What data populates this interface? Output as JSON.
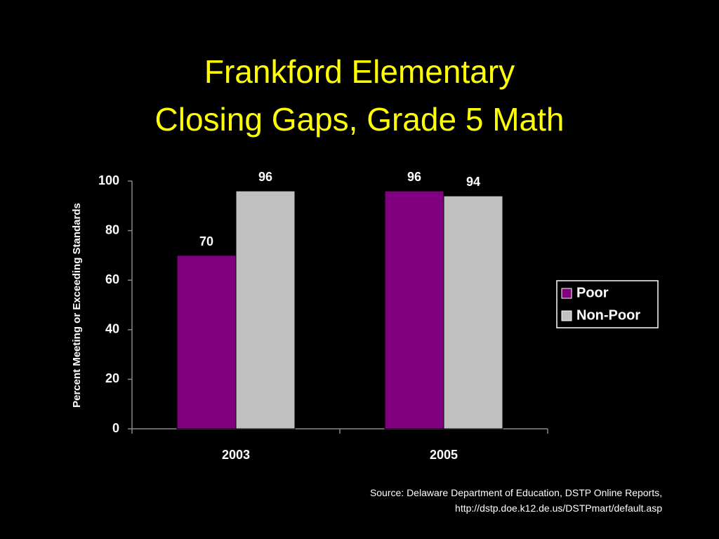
{
  "chart_data": {
    "type": "bar",
    "title": [
      "Frankford Elementary",
      "Closing Gaps, Grade 5 Math"
    ],
    "y_label": "Percent Meeting or Exceeding Standards",
    "categories": [
      "2003",
      "2005"
    ],
    "series": [
      {
        "name": "Poor",
        "color": "#800080",
        "values": [
          70,
          96
        ]
      },
      {
        "name": "Non-Poor",
        "color": "#c0c0c0",
        "values": [
          96,
          94
        ]
      }
    ],
    "ylim": [
      0,
      100
    ],
    "yticks": [
      0,
      20,
      40,
      60,
      80,
      100
    ],
    "grid": false,
    "legend": "right",
    "source": [
      "Source:  Delaware Department of Education, DSTP Online Reports,",
      "http://dstp.doe.k12.de.us/DSTPmart/default.asp"
    ]
  }
}
